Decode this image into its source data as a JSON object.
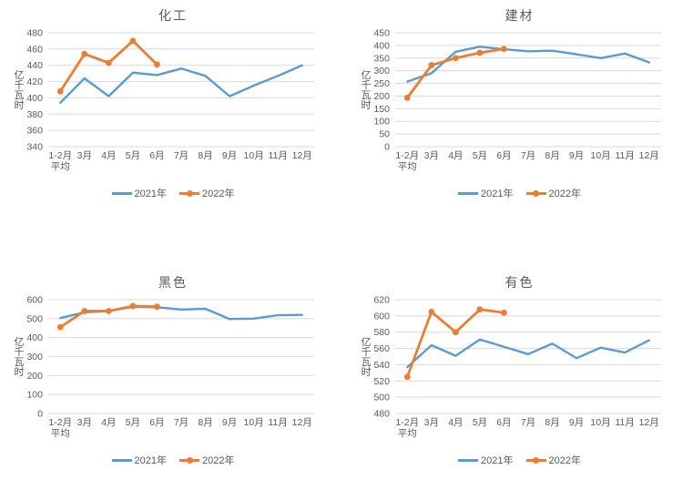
{
  "page": {
    "background": "#ffffff"
  },
  "colors": {
    "series_2021": "#5B9BD5",
    "series_2022": "#ED7D31",
    "grid": "#D9D9D9",
    "text": "#595959"
  },
  "chart_data": [
    {
      "type": "line",
      "title": "化工",
      "ylabel": "亿千瓦时",
      "categories": [
        "1-2月",
        "3月",
        "4月",
        "5月",
        "6月",
        "7月",
        "8月",
        "9月",
        "10月",
        "11月",
        "12月"
      ],
      "first_category_sublabel": "平均",
      "ylim": [
        340,
        480
      ],
      "yticks": [
        340,
        360,
        380,
        400,
        420,
        440,
        460,
        480
      ],
      "grid": true,
      "legend_position": "bottom",
      "series": [
        {
          "name": "2021年",
          "color": "#5B9BD5",
          "marker": false,
          "values": [
            394,
            424,
            402,
            431,
            428,
            436,
            427,
            402,
            415,
            427,
            440
          ]
        },
        {
          "name": "2022年",
          "color": "#ED7D31",
          "marker": true,
          "values": [
            408,
            454,
            443,
            470,
            441
          ]
        }
      ]
    },
    {
      "type": "line",
      "title": "建材",
      "ylabel": "亿千瓦时",
      "categories": [
        "1-2月",
        "3月",
        "4月",
        "5月",
        "6月",
        "7月",
        "8月",
        "9月",
        "10月",
        "11月",
        "12月"
      ],
      "first_category_sublabel": "平均",
      "ylim": [
        0,
        450
      ],
      "yticks": [
        0,
        50,
        100,
        150,
        200,
        250,
        300,
        350,
        400,
        450
      ],
      "grid": true,
      "legend_position": "bottom",
      "series": [
        {
          "name": "2021年",
          "color": "#5B9BD5",
          "marker": false,
          "values": [
            257,
            290,
            375,
            395,
            385,
            377,
            379,
            365,
            350,
            368,
            333
          ]
        },
        {
          "name": "2022年",
          "color": "#ED7D31",
          "marker": true,
          "values": [
            193,
            322,
            350,
            371,
            386
          ]
        }
      ]
    },
    {
      "type": "line",
      "title": "黑色",
      "ylabel": "亿千瓦时",
      "categories": [
        "1-2月",
        "3月",
        "4月",
        "5月",
        "6月",
        "7月",
        "8月",
        "9月",
        "10月",
        "11月",
        "12月"
      ],
      "first_category_sublabel": "平均",
      "ylim": [
        0,
        600
      ],
      "yticks": [
        0,
        100,
        200,
        300,
        400,
        500,
        600
      ],
      "grid": true,
      "legend_position": "bottom",
      "series": [
        {
          "name": "2021年",
          "color": "#5B9BD5",
          "marker": false,
          "values": [
            503,
            533,
            540,
            562,
            560,
            548,
            552,
            498,
            500,
            518,
            520
          ]
        },
        {
          "name": "2022年",
          "color": "#ED7D31",
          "marker": true,
          "values": [
            455,
            540,
            540,
            566,
            563
          ]
        }
      ]
    },
    {
      "type": "line",
      "title": "有色",
      "ylabel": "亿千瓦时",
      "categories": [
        "1-2月",
        "3月",
        "4月",
        "5月",
        "6月",
        "7月",
        "8月",
        "9月",
        "10月",
        "11月",
        "12月"
      ],
      "first_category_sublabel": "平均",
      "ylim": [
        480,
        620
      ],
      "yticks": [
        480,
        500,
        520,
        540,
        560,
        580,
        600,
        620
      ],
      "grid": true,
      "legend_position": "bottom",
      "series": [
        {
          "name": "2021年",
          "color": "#5B9BD5",
          "marker": false,
          "values": [
            537,
            564,
            551,
            571,
            562,
            553,
            566,
            548,
            561,
            555,
            570
          ]
        },
        {
          "name": "2022年",
          "color": "#ED7D31",
          "marker": true,
          "values": [
            525,
            605,
            580,
            608,
            604
          ]
        }
      ]
    }
  ]
}
